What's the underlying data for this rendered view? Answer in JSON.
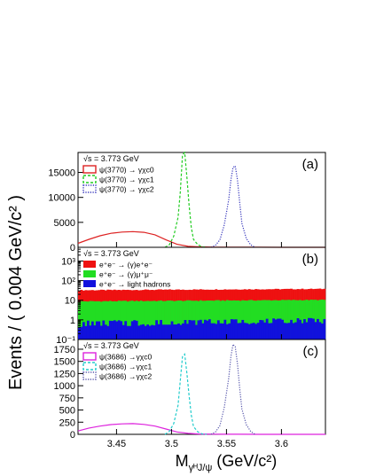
{
  "chart_data": [
    {
      "panel_label": "(a)",
      "type": "line",
      "energy_label": "√s = 3.773 GeV",
      "scale": "linear",
      "ylim": [
        0,
        19000
      ],
      "yticks": [
        0,
        5000,
        10000,
        15000
      ],
      "ytick_labels": [
        "0",
        "5000",
        "10000",
        "15000"
      ],
      "series": [
        {
          "name": "ψ(3770) → γχc0",
          "color": "#dd2222",
          "style": "solid",
          "x": [
            3.415,
            3.425,
            3.435,
            3.445,
            3.455,
            3.465,
            3.475,
            3.485,
            3.495,
            3.505,
            3.515,
            3.525,
            3.54,
            3.56,
            3.58,
            3.6,
            3.62,
            3.64
          ],
          "values": [
            800,
            1600,
            2300,
            2800,
            3050,
            3150,
            3000,
            2500,
            1500,
            600,
            200,
            80,
            40,
            20,
            10,
            0,
            0,
            0
          ]
        },
        {
          "name": "ψ(3770) → γχc1",
          "color": "#22cc22",
          "style": "dashed",
          "x": [
            3.494,
            3.498,
            3.502,
            3.506,
            3.508,
            3.51,
            3.512,
            3.514,
            3.516,
            3.518,
            3.52,
            3.524,
            3.528,
            3.532
          ],
          "values": [
            0,
            500,
            2200,
            6000,
            11000,
            18500,
            19000,
            14000,
            8500,
            4000,
            1600,
            500,
            100,
            0
          ]
        },
        {
          "name": "ψ(3770) → γχc2",
          "color": "#3333bb",
          "style": "dotted",
          "x": [
            3.536,
            3.54,
            3.544,
            3.548,
            3.552,
            3.554,
            3.556,
            3.558,
            3.56,
            3.562,
            3.564,
            3.568,
            3.572,
            3.576
          ],
          "values": [
            0,
            400,
            1500,
            4500,
            9500,
            13500,
            16000,
            16300,
            13500,
            9000,
            4800,
            1800,
            500,
            0
          ]
        }
      ]
    },
    {
      "panel_label": "(b)",
      "type": "bar",
      "energy_label": "√s = 3.773 GeV",
      "scale": "log",
      "ylim": [
        0.1,
        5000
      ],
      "yticks": [
        0.1,
        1,
        10,
        100,
        1000
      ],
      "ytick_labels": [
        "10⁻¹",
        "1",
        "10",
        "10²",
        "10³"
      ],
      "series": [
        {
          "name": "e⁺e⁻ → (γ)e⁺e⁻",
          "color": "#ee1111",
          "band": [
            30,
            40
          ]
        },
        {
          "name": "e⁺e⁻ → (γ)μ⁺μ⁻",
          "color": "#22dd22",
          "band": [
            8,
            11
          ]
        },
        {
          "name": "e⁺e⁻ → light hadrons",
          "color": "#1111dd",
          "band": [
            0.4,
            0.8
          ]
        }
      ]
    },
    {
      "panel_label": "(c)",
      "type": "line",
      "energy_label": "√s = 3.773 GeV",
      "scale": "linear",
      "ylim": [
        0,
        1950
      ],
      "yticks": [
        0,
        250,
        500,
        750,
        1000,
        1250,
        1500,
        1750
      ],
      "ytick_labels": [
        "0",
        "250",
        "500",
        "750",
        "1000",
        "1250",
        "1500",
        "1750"
      ],
      "series": [
        {
          "name": "ψ(3686) →γχc0",
          "color": "#dd22dd",
          "style": "solid",
          "x": [
            3.415,
            3.425,
            3.435,
            3.445,
            3.455,
            3.465,
            3.475,
            3.485,
            3.495,
            3.505,
            3.515,
            3.525,
            3.54,
            3.56,
            3.58,
            3.6,
            3.62,
            3.64
          ],
          "values": [
            70,
            130,
            170,
            200,
            215,
            220,
            205,
            170,
            110,
            50,
            20,
            8,
            4,
            2,
            0,
            0,
            0,
            0
          ]
        },
        {
          "name": "ψ(3686) →γχc1",
          "color": "#22cccc",
          "style": "dashed",
          "x": [
            3.494,
            3.498,
            3.502,
            3.506,
            3.508,
            3.51,
            3.512,
            3.514,
            3.516,
            3.518,
            3.52,
            3.524,
            3.528,
            3.532
          ],
          "values": [
            0,
            60,
            220,
            600,
            1100,
            1600,
            1650,
            1250,
            800,
            400,
            160,
            50,
            10,
            0
          ]
        },
        {
          "name": "ψ(3686) →γχc2",
          "color": "#5555aa",
          "style": "dotted",
          "x": [
            3.536,
            3.54,
            3.544,
            3.548,
            3.552,
            3.554,
            3.556,
            3.558,
            3.56,
            3.562,
            3.564,
            3.568,
            3.572,
            3.576
          ],
          "values": [
            0,
            50,
            180,
            550,
            1150,
            1600,
            1850,
            1800,
            1450,
            950,
            520,
            200,
            60,
            0
          ]
        }
      ]
    }
  ],
  "x_axis": {
    "xlim": [
      3.415,
      3.64
    ],
    "ticks": [
      3.45,
      3.5,
      3.55,
      3.6
    ],
    "tick_labels": [
      "3.45",
      "3.5",
      "3.55",
      "3.6"
    ]
  },
  "ylabel": "Events / ( 0.004 GeV/c² )",
  "xlabel": {
    "main": "M",
    "sub": "γᴴJ/ψ",
    "unit": " (GeV/c²)"
  }
}
